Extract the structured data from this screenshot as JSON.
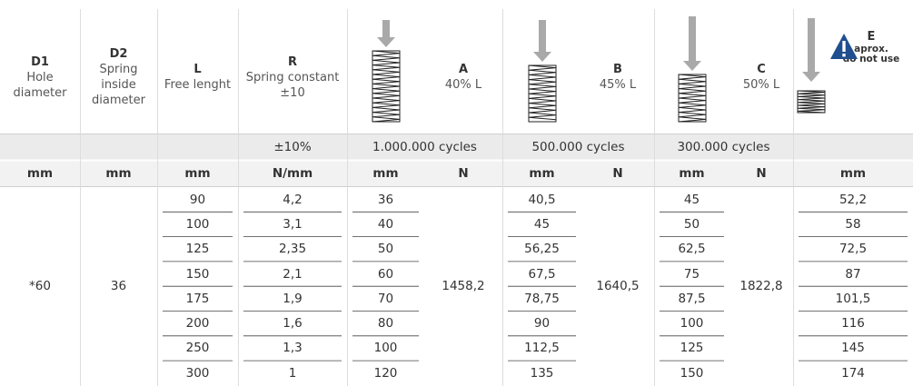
{
  "columns": [
    {
      "code": "D1",
      "label": [
        "Hole",
        "diameter"
      ],
      "unit": "mm"
    },
    {
      "code": "D2",
      "label": [
        "Spring",
        "inside",
        "diameter"
      ],
      "unit": "mm"
    },
    {
      "code": "L",
      "label": [
        "Free lenght"
      ],
      "unit": "mm"
    },
    {
      "code": "R",
      "label": [
        "Spring constant",
        "±10"
      ],
      "unit": "N/mm"
    },
    {
      "unit": "mm"
    },
    {
      "code": "A",
      "label": [
        "40% L"
      ],
      "unit": "N"
    },
    {
      "unit": "mm"
    },
    {
      "code": "B",
      "label": [
        "45% L"
      ],
      "unit": "N"
    },
    {
      "unit": "mm"
    },
    {
      "code": "C",
      "label": [
        "50% L"
      ],
      "unit": "N"
    },
    {
      "code": "E",
      "label": [
        "aprox.",
        "do not use"
      ],
      "unit": "mm"
    }
  ],
  "subheader": {
    "r": "±10%",
    "a": "1.000.000 cycles",
    "b": "500.000 cycles",
    "c": "300.000 cycles"
  },
  "merged": {
    "d1": "*60",
    "d2": "36",
    "a_force": "1458,2",
    "b_force": "1640,5",
    "c_force": "1822,8"
  },
  "rows": [
    [
      "90",
      "4,2",
      "36",
      "40,5",
      "45",
      "52,2"
    ],
    [
      "100",
      "3,1",
      "40",
      "45",
      "50",
      "58"
    ],
    [
      "125",
      "2,35",
      "50",
      "56,25",
      "62,5",
      "72,5"
    ],
    [
      "150",
      "2,1",
      "60",
      "67,5",
      "75",
      "87"
    ],
    [
      "175",
      "1,9",
      "70",
      "78,75",
      "87,5",
      "101,5"
    ],
    [
      "200",
      "1,6",
      "80",
      "90",
      "100",
      "116"
    ],
    [
      "250",
      "1,3",
      "100",
      "112,5",
      "125",
      "145"
    ],
    [
      "300",
      "1",
      "120",
      "135",
      "150",
      "174"
    ]
  ]
}
